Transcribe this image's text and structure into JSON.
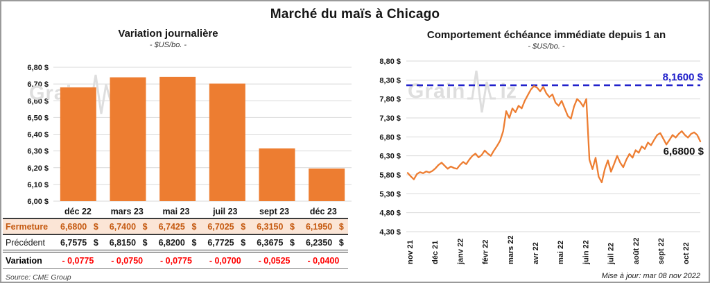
{
  "title": "Marché du maïs à Chicago",
  "watermark": {
    "brand_left": "Grain",
    "brand_right": "iz"
  },
  "left_chart": {
    "title": "Variation journalière",
    "subtitle": "- $US/bo. -",
    "source": "Source: CME Group"
  },
  "right_chart": {
    "title": "Comportement échéance immédiate depuis 1 an",
    "subtitle": "- $US/bo. -",
    "updated": "Mise à jour: mar 08 nov 2022"
  },
  "table": {
    "columns": [
      "déc 22",
      "mars 23",
      "mai 23",
      "juil 23",
      "sept 23",
      "déc 23"
    ],
    "rows": [
      {
        "name": "fermeture",
        "label": "Fermeture",
        "unit": "$",
        "values": [
          "6,6800",
          "6,7400",
          "6,7425",
          "6,7025",
          "6,3150",
          "6,1950"
        ]
      },
      {
        "name": "precedent",
        "label": "Précédent",
        "unit": "$",
        "values": [
          "6,7575",
          "6,8150",
          "6,8200",
          "6,7725",
          "6,3675",
          "6,2350"
        ]
      },
      {
        "name": "variation",
        "label": "Variation",
        "unit": "",
        "values": [
          "- 0,0775",
          "- 0,0750",
          "- 0,0775",
          "- 0,0700",
          "- 0,0525",
          "- 0,0400"
        ]
      }
    ]
  },
  "chart_data": [
    {
      "type": "bar",
      "title": "Variation journalière",
      "subtitle": "- $US/bo. -",
      "categories": [
        "déc 22",
        "mars 23",
        "mai 23",
        "juil 23",
        "sept 23",
        "déc 23"
      ],
      "values": [
        6.68,
        6.74,
        6.7425,
        6.7025,
        6.315,
        6.195
      ],
      "ylabel": "$US/bo.",
      "ylim": [
        6.0,
        6.8
      ],
      "ytick_step": 0.1,
      "ytick_labels": [
        "6,80 $",
        "6,70 $",
        "6,60 $",
        "6,50 $",
        "6,40 $",
        "6,30 $",
        "6,20 $",
        "6,10 $",
        "6,00 $"
      ],
      "grid": true,
      "bar_color": "#ED7D31"
    },
    {
      "type": "line",
      "title": "Comportement échéance immédiate depuis 1 an",
      "subtitle": "- $US/bo. -",
      "x_labels": [
        "nov 21",
        "déc 21",
        "janv 22",
        "févr 22",
        "mars 22",
        "avr 22",
        "mai 22",
        "juin 22",
        "juil 22",
        "août 22",
        "sept 22",
        "oct 22"
      ],
      "ylim": [
        4.3,
        8.8
      ],
      "ytick_step": 0.5,
      "ytick_labels": [
        "8,80 $",
        "8,30 $",
        "7,80 $",
        "7,30 $",
        "6,80 $",
        "6,30 $",
        "5,80 $",
        "5,30 $",
        "4,80 $",
        "4,30 $"
      ],
      "grid": true,
      "line_color": "#ED7D31",
      "reference_line": {
        "value": 8.16,
        "label": "8,1600 $",
        "color": "#2121CB",
        "style": "dashed"
      },
      "last_value": {
        "value": 6.68,
        "label": "6,6800 $"
      },
      "values": [
        5.85,
        5.76,
        5.68,
        5.82,
        5.87,
        5.84,
        5.89,
        5.86,
        5.9,
        5.97,
        6.06,
        6.12,
        6.04,
        5.96,
        6.02,
        5.98,
        5.96,
        6.06,
        6.14,
        6.08,
        6.2,
        6.3,
        6.36,
        6.26,
        6.32,
        6.44,
        6.36,
        6.3,
        6.44,
        6.56,
        6.7,
        6.95,
        7.48,
        7.3,
        7.55,
        7.45,
        7.62,
        7.55,
        7.75,
        7.9,
        8.05,
        8.14,
        8.1,
        8.0,
        8.12,
        7.95,
        7.85,
        7.92,
        7.7,
        7.62,
        7.75,
        7.55,
        7.35,
        7.28,
        7.6,
        7.8,
        7.72,
        7.6,
        7.8,
        6.2,
        5.95,
        6.25,
        5.75,
        5.6,
        5.95,
        6.18,
        5.88,
        6.08,
        6.3,
        6.12,
        6.0,
        6.2,
        6.35,
        6.25,
        6.45,
        6.38,
        6.55,
        6.48,
        6.65,
        6.58,
        6.72,
        6.85,
        6.9,
        6.75,
        6.6,
        6.72,
        6.85,
        6.78,
        6.88,
        6.95,
        6.85,
        6.78,
        6.88,
        6.92,
        6.85,
        6.68
      ]
    }
  ],
  "colors": {
    "accent_orange": "#ED7D31",
    "fermeture_bg": "#FBE5D6",
    "fermeture_text": "#C55A11",
    "variation_text": "#FF0000",
    "reference_blue": "#2121CB",
    "gridline": "#D9D9D9",
    "watermark": "#DEDEDE"
  }
}
